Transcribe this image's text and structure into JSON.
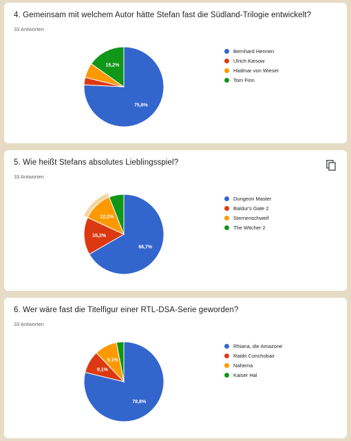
{
  "colors": {
    "blue": "#3366cc",
    "red": "#dc3912",
    "orange": "#ff9900",
    "green": "#109618",
    "highlight": "#f6d6a0"
  },
  "cards": [
    {
      "title": "4. Gemeinsam mit welchem Autor hätte Stefan fast die Südland-Trilogie entwickelt?",
      "count": "33 Antworten",
      "show_copy_icon": false
    },
    {
      "title": "5. Wie heißt Stefans absolutes Lieblingsspiel?",
      "count": "33 Antworten",
      "show_copy_icon": true,
      "copy_icon": "copy-icon"
    },
    {
      "title": "6. Wer wäre fast die Titelfigur einer RTL-DSA-Serie geworden?",
      "count": "33 Antworten",
      "show_copy_icon": false
    }
  ],
  "chart_data": [
    {
      "type": "pie",
      "title": "4. Gemeinsam mit welchem Autor hätte Stefan fast die Südland-Trilogie entwickelt?",
      "categories": [
        "Bernhard Hennen",
        "Ulrich Kiesow",
        "Hadmar von Wieser",
        "Tom Finn"
      ],
      "values": [
        75.8,
        3.0,
        6.0,
        15.2
      ],
      "labels": [
        "75,8%",
        "",
        "",
        "15,2%"
      ],
      "colors": [
        "#3366cc",
        "#dc3912",
        "#ff9900",
        "#109618"
      ],
      "legend": "right"
    },
    {
      "type": "pie",
      "title": "5. Wie heißt Stefans absolutes Lieblingsspiel?",
      "categories": [
        "Dungeon Master",
        "Baldur's Gate 2",
        "Sternenschweif",
        "The Witcher 2"
      ],
      "values": [
        66.7,
        15.2,
        12.1,
        6.0
      ],
      "labels": [
        "66,7%",
        "15,2%",
        "12,1%",
        ""
      ],
      "colors": [
        "#3366cc",
        "#dc3912",
        "#ff9900",
        "#109618"
      ],
      "highlighted": 2,
      "legend": "right"
    },
    {
      "type": "pie",
      "title": "6. Wer wäre fast die Titelfigur einer RTL-DSA-Serie geworden?",
      "categories": [
        "Rhiana, die Amazone",
        "Raidri Conchobair",
        "Nahema",
        "Kaiser Hal"
      ],
      "values": [
        78.8,
        9.1,
        9.1,
        3.0
      ],
      "labels": [
        "78,8%",
        "9,1%",
        "9,1%",
        ""
      ],
      "colors": [
        "#3366cc",
        "#dc3912",
        "#ff9900",
        "#109618"
      ],
      "legend": "right"
    }
  ]
}
